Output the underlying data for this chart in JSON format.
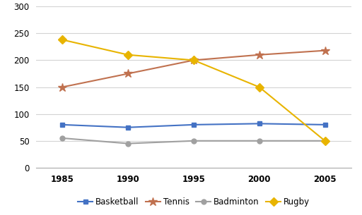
{
  "years": [
    1985,
    1990,
    1995,
    2000,
    2005
  ],
  "basketball": [
    80,
    75,
    80,
    82,
    80
  ],
  "tennis": [
    150,
    175,
    200,
    210,
    218
  ],
  "badminton": [
    55,
    45,
    50,
    50,
    50
  ],
  "rugby": [
    238,
    210,
    200,
    150,
    50
  ],
  "basketball_color": "#4472C4",
  "tennis_color": "#C0714F",
  "badminton_color": "#A0A0A0",
  "rugby_color": "#E8B400",
  "basketball_marker": "s",
  "tennis_marker": "*",
  "badminton_marker": "o",
  "rugby_marker": "D",
  "ylim": [
    0,
    300
  ],
  "yticks": [
    0,
    50,
    100,
    150,
    200,
    250,
    300
  ],
  "legend_labels": [
    "Basketball",
    "Tennis",
    "Badminton",
    "Rugby"
  ],
  "background_color": "#ffffff",
  "grid_color": "#d3d3d3"
}
